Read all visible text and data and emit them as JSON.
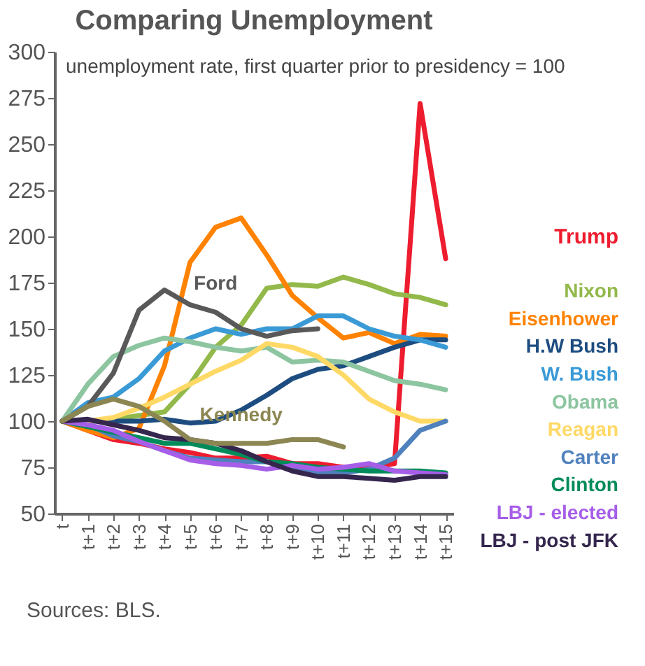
{
  "chart_data": {
    "type": "line",
    "title": "Comparing Unemployment",
    "subtitle": "unemployment rate, first quarter prior to presidency = 100",
    "categories": [
      "t",
      "t+1",
      "t+2",
      "t+3",
      "t+4",
      "t+5",
      "t+6",
      "t+7",
      "t+8",
      "t+9",
      "t+10",
      "t+11",
      "t+12",
      "t+13",
      "t+14",
      "t+15"
    ],
    "series": [
      {
        "name": "Trump",
        "color": "#ed1c2e",
        "values": [
          100,
          95,
          90,
          88,
          85,
          83,
          80,
          80,
          81,
          77,
          77,
          75,
          75,
          77,
          272,
          188
        ]
      },
      {
        "name": "Nixon",
        "color": "#92b94a",
        "values": [
          100,
          100,
          101,
          103,
          105,
          120,
          140,
          152,
          172,
          174,
          173,
          178,
          174,
          169,
          167,
          163
        ]
      },
      {
        "name": "Eisenhower",
        "color": "#ff8200",
        "values": [
          100,
          95,
          91,
          96,
          130,
          186,
          205,
          210,
          190,
          168,
          156,
          145,
          148,
          142,
          147,
          146
        ]
      },
      {
        "name": "H.W Bush",
        "color": "#1d4d80",
        "values": [
          100,
          100,
          100,
          100,
          101,
          99,
          100,
          106,
          114,
          123,
          128,
          130,
          135,
          140,
          144,
          144
        ]
      },
      {
        "name": "W. Bush",
        "color": "#3a9ad6",
        "values": [
          100,
          110,
          113,
          123,
          138,
          145,
          150,
          147,
          150,
          150,
          157,
          157,
          150,
          146,
          144,
          140
        ]
      },
      {
        "name": "Obama",
        "color": "#8cc5a0",
        "values": [
          100,
          120,
          135,
          141,
          145,
          143,
          140,
          138,
          140,
          132,
          133,
          132,
          127,
          122,
          120,
          117
        ]
      },
      {
        "name": "Reagan",
        "color": "#ffd966",
        "values": [
          100,
          100,
          102,
          107,
          113,
          120,
          127,
          133,
          142,
          140,
          135,
          125,
          112,
          105,
          100,
          100
        ]
      },
      {
        "name": "Carter",
        "color": "#4f81bd",
        "values": [
          100,
          98,
          92,
          89,
          84,
          80,
          79,
          78,
          78,
          75,
          72,
          72,
          74,
          80,
          95,
          100
        ]
      },
      {
        "name": "Clinton",
        "color": "#008b5a",
        "values": [
          100,
          97,
          94,
          91,
          88,
          88,
          85,
          82,
          78,
          77,
          75,
          74,
          73,
          73,
          73,
          72
        ]
      },
      {
        "name": "LBJ - elected",
        "color": "#a65ee8",
        "values": [
          100,
          98,
          95,
          89,
          84,
          79,
          77,
          76,
          74,
          76,
          74,
          75,
          77,
          73,
          72,
          71
        ]
      },
      {
        "name": "LBJ - post JFK",
        "color": "#35264e",
        "values": [
          100,
          101,
          98,
          95,
          91,
          90,
          88,
          84,
          78,
          73,
          70,
          70,
          69,
          68,
          70,
          70
        ]
      },
      {
        "name": "Ford",
        "color": "#595959",
        "values": [
          100,
          108,
          126,
          160,
          171,
          163,
          159,
          150,
          146,
          149,
          150,
          null,
          null,
          null,
          null,
          null
        ]
      },
      {
        "name": "Kennedy",
        "color": "#8c8653",
        "values": [
          100,
          108,
          112,
          108,
          100,
          90,
          88,
          88,
          88,
          90,
          90,
          86,
          null,
          null,
          null,
          null
        ]
      }
    ],
    "ylim": [
      50,
      300
    ],
    "yticks": [
      50,
      75,
      100,
      125,
      150,
      175,
      200,
      225,
      250,
      275,
      300
    ],
    "grid": false,
    "legend": "right",
    "line_style": "solid",
    "marker": "none",
    "annotations": [
      "Sources: BLS."
    ]
  }
}
